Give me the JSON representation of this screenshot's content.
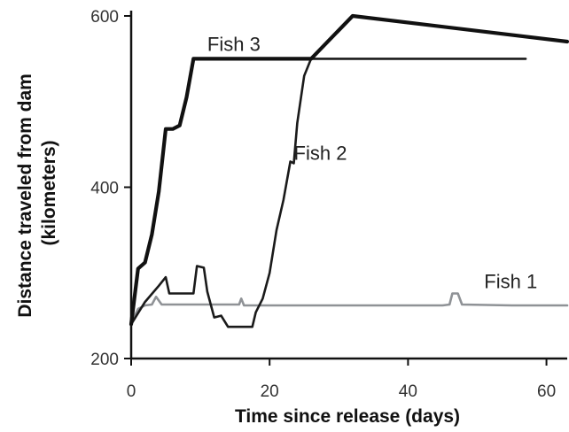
{
  "chart_data": {
    "type": "line",
    "xlabel": "Time since release (days)",
    "ylabel": "Distance traveled from dam (kilometers)",
    "ylabel_lines": [
      "Distance traveled from dam",
      "(kilometers)"
    ],
    "xlim": [
      0,
      63
    ],
    "ylim": [
      200,
      610
    ],
    "x_ticks": [
      0,
      20,
      40,
      60
    ],
    "y_ticks": [
      200,
      400,
      600
    ],
    "grid": false,
    "legend": "none",
    "series": [
      {
        "name": "Fish 1",
        "color": "#8f9296",
        "label_at": [
          51,
          282
        ],
        "points": [
          [
            0,
            242
          ],
          [
            1,
            258
          ],
          [
            2,
            262
          ],
          [
            3,
            263
          ],
          [
            3.6,
            272
          ],
          [
            4.4,
            263
          ],
          [
            10,
            263
          ],
          [
            15.6,
            263
          ],
          [
            15.9,
            270
          ],
          [
            16.3,
            262
          ],
          [
            20,
            262
          ],
          [
            35,
            262
          ],
          [
            45,
            262
          ],
          [
            46,
            263
          ],
          [
            46.4,
            276
          ],
          [
            47.2,
            276
          ],
          [
            47.8,
            263
          ],
          [
            55,
            262
          ],
          [
            63,
            262
          ]
        ]
      },
      {
        "name": "Fish 2",
        "color": "#1a1a1a",
        "label_at": [
          23.5,
          432
        ],
        "points": [
          [
            0,
            240
          ],
          [
            2,
            266
          ],
          [
            4,
            285
          ],
          [
            5,
            295
          ],
          [
            5.5,
            276
          ],
          [
            8,
            276
          ],
          [
            9,
            276
          ],
          [
            9.5,
            308
          ],
          [
            10.5,
            306
          ],
          [
            11,
            278
          ],
          [
            12,
            248
          ],
          [
            13,
            250
          ],
          [
            14,
            237
          ],
          [
            15,
            237
          ],
          [
            17.5,
            237
          ],
          [
            18,
            254
          ],
          [
            19,
            270
          ],
          [
            20,
            300
          ],
          [
            21,
            350
          ],
          [
            22,
            385
          ],
          [
            23,
            430
          ],
          [
            23.5,
            428
          ],
          [
            24,
            475
          ],
          [
            25,
            530
          ],
          [
            26,
            550
          ],
          [
            57,
            550
          ]
        ]
      },
      {
        "name": "Fish 3",
        "color": "#111111",
        "label_at": [
          11,
          559
        ],
        "points": [
          [
            0,
            240
          ],
          [
            1,
            305
          ],
          [
            2,
            312
          ],
          [
            3,
            345
          ],
          [
            4,
            395
          ],
          [
            5,
            468
          ],
          [
            6,
            468
          ],
          [
            7,
            472
          ],
          [
            8,
            505
          ],
          [
            9,
            550
          ],
          [
            26,
            550
          ],
          [
            32,
            600
          ],
          [
            63,
            570
          ]
        ]
      }
    ]
  }
}
